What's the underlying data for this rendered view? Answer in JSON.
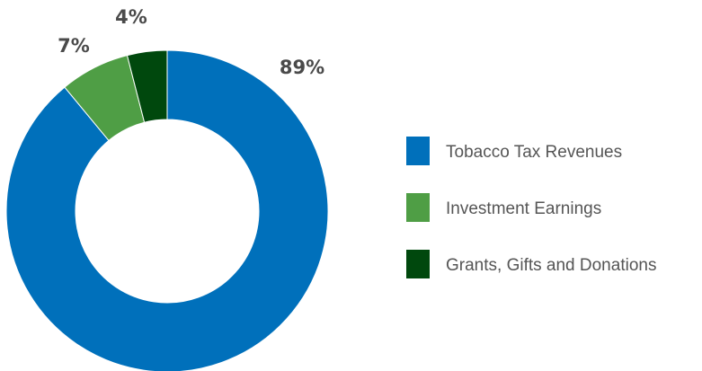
{
  "chart_data": {
    "type": "pie",
    "donut": true,
    "categories": [
      "Tobacco Tax Revenues",
      "Investment Earnings",
      "Grants, Gifts and Donations"
    ],
    "values": [
      89,
      7,
      4
    ],
    "labels": [
      "89%",
      "7%",
      "4%"
    ],
    "colors": [
      "#0070bb",
      "#4f9e45",
      "#00480d"
    ],
    "legend": "right"
  }
}
